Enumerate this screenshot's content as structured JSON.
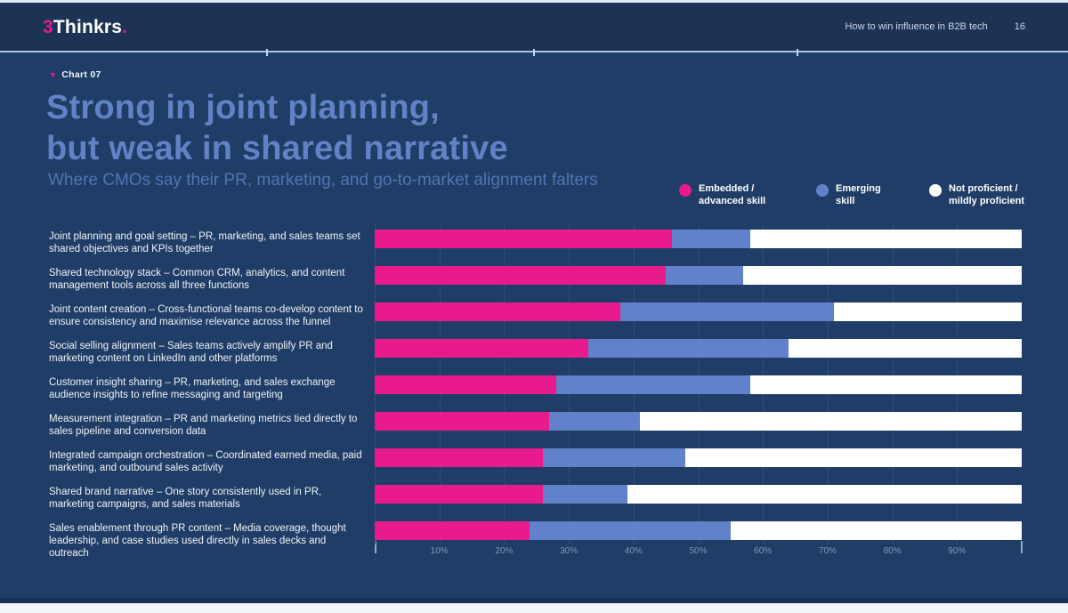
{
  "header": {
    "logo_prefix": "3",
    "logo_name": "Thinkrs",
    "logo_suffix": ".",
    "doc_title": "How to win influence in B2B tech",
    "page_number": "16"
  },
  "chart_label": "Chart 07",
  "title_line1": "Strong in joint planning,",
  "title_line2": "but weak in shared narrative",
  "subtitle": "Where CMOs say their PR, marketing, and go-to-market alignment falters",
  "legend": [
    {
      "line1": "Embedded /",
      "line2": "advanced skill",
      "color": "#e91a8c"
    },
    {
      "line1": "Emerging",
      "line2": "skill",
      "color": "#6182ca"
    },
    {
      "line1": "Not proficient /",
      "line2": "mildly proficient",
      "color": "#ffffff"
    }
  ],
  "chart_data": {
    "type": "bar",
    "orientation": "horizontal",
    "stacked": true,
    "unit": "percent",
    "xlim": [
      0,
      100
    ],
    "grid": true,
    "x_ticks": [
      "10%",
      "20%",
      "30%",
      "40%",
      "50%",
      "60%",
      "70%",
      "80%",
      "90%"
    ],
    "categories": [
      "Joint planning and goal setting – PR, marketing, and sales teams set shared objectives and KPIs together",
      "Shared technology stack – Common CRM, analytics, and content management tools across all three functions",
      "Joint content creation – Cross-functional teams co-develop content to ensure consistency and maximise relevance across the funnel",
      "Social selling alignment – Sales teams actively amplify PR and marketing content on LinkedIn and other platforms",
      "Customer insight sharing – PR, marketing, and sales exchange audience insights to refine messaging and targeting",
      "Measurement integration – PR and marketing metrics tied directly to sales pipeline and conversion data",
      "Integrated campaign orchestration – Coordinated earned media, paid marketing, and outbound sales activity",
      "Shared brand narrative – One story consistently used in PR, marketing campaigns, and sales materials",
      "Sales enablement through PR content – Media coverage, thought leadership, and case studies used directly in sales decks and outreach"
    ],
    "series": [
      {
        "name": "Embedded / advanced skill",
        "color": "#e91a8c",
        "values": [
          46,
          45,
          38,
          33,
          28,
          27,
          26,
          26,
          24
        ]
      },
      {
        "name": "Emerging skill",
        "color": "#6182ca",
        "values": [
          12,
          12,
          33,
          31,
          30,
          14,
          22,
          13,
          31
        ]
      },
      {
        "name": "Not proficient / mildly proficient",
        "color": "#ffffff",
        "values": [
          42,
          43,
          29,
          36,
          42,
          59,
          52,
          61,
          45
        ]
      }
    ]
  },
  "colors": {
    "background": "#1f3d66",
    "header_background": "#1c3356",
    "accent_pink": "#e91a8c",
    "title_blue": "#6183c6",
    "separator": "#a9c3e0"
  }
}
